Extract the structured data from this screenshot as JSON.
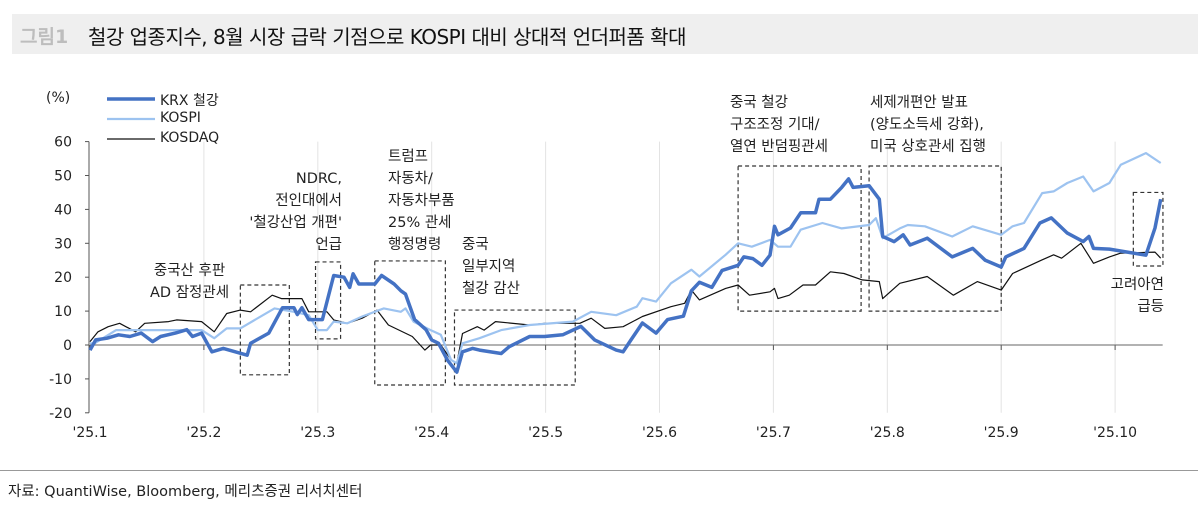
{
  "header": {
    "figure_label": "그림1",
    "title": "철강 업종지수, 8월 시장 급락 기점으로 KOSPI 대비 상대적 언더퍼폼 확대"
  },
  "source": "자료: QuantiWise, Bloomberg, 메리츠증권 리서치센터",
  "chart_data": {
    "type": "line",
    "title": "철강 업종지수, 8월 시장 급락 기점으로 KOSPI 대비 상대적 언더퍼폼 확대",
    "ylabel": "(%)",
    "xlabel": "",
    "ylim": [
      -20,
      60
    ],
    "yticks": [
      60,
      50,
      40,
      30,
      20,
      10,
      0,
      -10,
      -20
    ],
    "xlim": [
      0,
      9.4
    ],
    "xticks": [
      0,
      1,
      2,
      3,
      4,
      5,
      6,
      7,
      8,
      9
    ],
    "xtick_labels": [
      "'25.1",
      "'25.2",
      "'25.3",
      "'25.4",
      "'25.5",
      "'25.6",
      "'25.7",
      "'25.8",
      "'25.9",
      "'25.10"
    ],
    "grid": "vertical",
    "legend_position": "top-left",
    "x_unit": "months since 2025-01",
    "series": [
      {
        "name": "KRX 철강",
        "color": "#4472c4",
        "width": 3.5,
        "points": [
          [
            0,
            -1.5
          ],
          [
            0.05,
            1.5
          ],
          [
            0.15,
            2
          ],
          [
            0.25,
            3
          ],
          [
            0.35,
            2.5
          ],
          [
            0.45,
            3.5
          ],
          [
            0.55,
            1
          ],
          [
            0.62,
            2.5
          ],
          [
            0.75,
            3.5
          ],
          [
            0.85,
            4.5
          ],
          [
            0.9,
            2.5
          ],
          [
            0.98,
            3.5
          ],
          [
            1.07,
            -2
          ],
          [
            1.17,
            -1
          ],
          [
            1.38,
            -3
          ],
          [
            1.41,
            0.5
          ],
          [
            1.57,
            3.5
          ],
          [
            1.69,
            11
          ],
          [
            1.79,
            11
          ],
          [
            1.82,
            9
          ],
          [
            1.86,
            11
          ],
          [
            1.92,
            7.5
          ],
          [
            2.04,
            7.5
          ],
          [
            2.14,
            20.5
          ],
          [
            2.23,
            20
          ],
          [
            2.28,
            17
          ],
          [
            2.31,
            21
          ],
          [
            2.36,
            18
          ],
          [
            2.5,
            18
          ],
          [
            2.56,
            20.5
          ],
          [
            2.67,
            18
          ],
          [
            2.73,
            16
          ],
          [
            2.77,
            15
          ],
          [
            2.85,
            7.5
          ],
          [
            2.95,
            4.5
          ],
          [
            3.0,
            1.5
          ],
          [
            3.06,
            0.5
          ],
          [
            3.14,
            -4.5
          ],
          [
            3.22,
            -8
          ],
          [
            3.27,
            -2
          ],
          [
            3.36,
            -1
          ],
          [
            3.42,
            -1.5
          ],
          [
            3.61,
            -2.5
          ],
          [
            3.68,
            -0.5
          ],
          [
            3.86,
            2.5
          ],
          [
            3.99,
            2.5
          ],
          [
            4.15,
            3
          ],
          [
            4.31,
            5.5
          ],
          [
            4.43,
            1.5
          ],
          [
            4.62,
            -1.5
          ],
          [
            4.68,
            -2
          ],
          [
            4.75,
            1.5
          ],
          [
            4.85,
            6.5
          ],
          [
            4.97,
            3.5
          ],
          [
            5.07,
            7.5
          ],
          [
            5.21,
            8.5
          ],
          [
            5.28,
            16
          ],
          [
            5.35,
            18.5
          ],
          [
            5.46,
            17
          ],
          [
            5.55,
            22
          ],
          [
            5.69,
            23.5
          ],
          [
            5.74,
            26
          ],
          [
            5.82,
            25.5
          ],
          [
            5.9,
            23.5
          ],
          [
            5.97,
            26.5
          ],
          [
            6.01,
            35
          ],
          [
            6.04,
            32.5
          ],
          [
            6.15,
            34.5
          ],
          [
            6.24,
            39
          ],
          [
            6.37,
            39
          ],
          [
            6.4,
            43
          ],
          [
            6.5,
            43
          ],
          [
            6.6,
            46.5
          ],
          [
            6.66,
            49
          ],
          [
            6.7,
            46.5
          ],
          [
            6.84,
            47
          ],
          [
            6.93,
            43
          ],
          [
            6.96,
            32
          ],
          [
            7.06,
            30.5
          ],
          [
            7.14,
            32.5
          ],
          [
            7.2,
            29.5
          ],
          [
            7.35,
            31.5
          ],
          [
            7.57,
            26
          ],
          [
            7.75,
            28.5
          ],
          [
            7.86,
            25
          ],
          [
            8.0,
            23
          ],
          [
            8.04,
            26
          ],
          [
            8.2,
            28.5
          ],
          [
            8.34,
            36
          ],
          [
            8.44,
            37.5
          ],
          [
            8.58,
            33
          ],
          [
            8.72,
            30.5
          ],
          [
            8.77,
            32
          ],
          [
            8.81,
            28.5
          ],
          [
            8.95,
            28.3
          ],
          [
            9.27,
            26.5
          ],
          [
            9.35,
            34.5
          ],
          [
            9.4,
            43
          ]
        ]
      },
      {
        "name": "KOSPI",
        "color": "#9dc3f0",
        "width": 2.2,
        "points": [
          [
            0,
            0.5
          ],
          [
            0.04,
            0.5
          ],
          [
            0.23,
            4.4
          ],
          [
            0.98,
            4.4
          ],
          [
            1.09,
            2
          ],
          [
            1.2,
            4.9
          ],
          [
            1.32,
            4.9
          ],
          [
            1.62,
            10.8
          ],
          [
            1.79,
            9.8
          ],
          [
            1.92,
            8.8
          ],
          [
            2.0,
            4.4
          ],
          [
            2.08,
            4.4
          ],
          [
            2.14,
            6.9
          ],
          [
            2.26,
            6.4
          ],
          [
            2.39,
            8.4
          ],
          [
            2.58,
            10.8
          ],
          [
            2.73,
            9.8
          ],
          [
            2.77,
            10.8
          ],
          [
            2.84,
            6.9
          ],
          [
            2.99,
            4.4
          ],
          [
            3.08,
            3
          ],
          [
            3.17,
            -4.4
          ],
          [
            3.22,
            -5.4
          ],
          [
            3.27,
            0.5
          ],
          [
            3.42,
            2
          ],
          [
            3.61,
            4.4
          ],
          [
            3.86,
            5.9
          ],
          [
            4.24,
            6.9
          ],
          [
            4.4,
            9.8
          ],
          [
            4.62,
            8.8
          ],
          [
            4.8,
            11.3
          ],
          [
            4.85,
            13.8
          ],
          [
            4.97,
            12.8
          ],
          [
            5.1,
            18.2
          ],
          [
            5.28,
            22.2
          ],
          [
            5.35,
            20.2
          ],
          [
            5.58,
            26.6
          ],
          [
            5.69,
            30
          ],
          [
            5.81,
            29
          ],
          [
            5.97,
            31
          ],
          [
            6.04,
            29
          ],
          [
            6.15,
            29
          ],
          [
            6.24,
            34
          ],
          [
            6.43,
            36
          ],
          [
            6.6,
            34.4
          ],
          [
            6.84,
            35.4
          ],
          [
            6.9,
            37.4
          ],
          [
            6.96,
            31.5
          ],
          [
            7.11,
            34.4
          ],
          [
            7.18,
            35.4
          ],
          [
            7.33,
            35
          ],
          [
            7.57,
            32
          ],
          [
            7.75,
            35
          ],
          [
            8.0,
            32.5
          ],
          [
            8.1,
            35
          ],
          [
            8.2,
            36
          ],
          [
            8.36,
            44.8
          ],
          [
            8.46,
            45.3
          ],
          [
            8.58,
            47.8
          ],
          [
            8.72,
            49.7
          ],
          [
            8.81,
            45.3
          ],
          [
            8.95,
            47.8
          ],
          [
            9.05,
            53.2
          ],
          [
            9.27,
            56.6
          ],
          [
            9.4,
            53.7
          ]
        ]
      },
      {
        "name": "KOSDAQ",
        "color": "#111111",
        "width": 1.2,
        "points": [
          [
            0.0,
            1
          ],
          [
            0.07,
            3.9
          ],
          [
            0.16,
            5.4
          ],
          [
            0.26,
            6.4
          ],
          [
            0.4,
            3.9
          ],
          [
            0.48,
            6.4
          ],
          [
            0.69,
            6.9
          ],
          [
            0.76,
            7.4
          ],
          [
            0.98,
            6.9
          ],
          [
            1.09,
            3.9
          ],
          [
            1.2,
            9.3
          ],
          [
            1.32,
            10.3
          ],
          [
            1.41,
            9.8
          ],
          [
            1.6,
            14.7
          ],
          [
            1.68,
            13.7
          ],
          [
            1.86,
            13.7
          ],
          [
            1.92,
            9.8
          ],
          [
            2.08,
            9.8
          ],
          [
            2.14,
            7.4
          ],
          [
            2.26,
            6.4
          ],
          [
            2.39,
            7.9
          ],
          [
            2.52,
            10.3
          ],
          [
            2.62,
            5.9
          ],
          [
            2.83,
            2.5
          ],
          [
            2.94,
            -1.5
          ],
          [
            2.99,
            0
          ],
          [
            3.08,
            0
          ],
          [
            3.17,
            -4.4
          ],
          [
            3.22,
            -5.4
          ],
          [
            3.27,
            3.4
          ],
          [
            3.4,
            5.4
          ],
          [
            3.46,
            4.4
          ],
          [
            3.56,
            6.9
          ],
          [
            3.86,
            5.9
          ],
          [
            3.99,
            6.4
          ],
          [
            4.3,
            6.4
          ],
          [
            4.4,
            7.9
          ],
          [
            4.52,
            4.9
          ],
          [
            4.68,
            5.4
          ],
          [
            4.85,
            8.4
          ],
          [
            5.1,
            11.3
          ],
          [
            5.22,
            12.3
          ],
          [
            5.28,
            16.2
          ],
          [
            5.35,
            13.3
          ],
          [
            5.58,
            16.7
          ],
          [
            5.69,
            17.7
          ],
          [
            5.79,
            14.7
          ],
          [
            5.97,
            15.7
          ],
          [
            6.01,
            16.7
          ],
          [
            6.04,
            13.7
          ],
          [
            6.14,
            14.7
          ],
          [
            6.26,
            17.7
          ],
          [
            6.37,
            17.7
          ],
          [
            6.5,
            21.6
          ],
          [
            6.62,
            21.1
          ],
          [
            6.78,
            19.2
          ],
          [
            6.93,
            18.7
          ],
          [
            6.96,
            13.7
          ],
          [
            7.11,
            18.2
          ],
          [
            7.35,
            20.2
          ],
          [
            7.58,
            14.7
          ],
          [
            7.79,
            18.7
          ],
          [
            8.0,
            16.2
          ],
          [
            8.1,
            21.1
          ],
          [
            8.35,
            25
          ],
          [
            8.46,
            26.6
          ],
          [
            8.53,
            25.6
          ],
          [
            8.7,
            30
          ],
          [
            8.81,
            24.1
          ],
          [
            8.95,
            26
          ],
          [
            9.05,
            27.1
          ],
          [
            9.35,
            27.4
          ],
          [
            9.4,
            25.6
          ]
        ]
      }
    ],
    "annotations": [
      {
        "text": "중국산 후판\nAD 잠정관세",
        "box": {
          "x": [
            1.32,
            1.75
          ],
          "y": [
            -8.8,
            17.7
          ]
        }
      },
      {
        "text": "NDRC,\n전인대에서\n'철강산업 개편'\n언급",
        "box": {
          "x": [
            1.98,
            2.2
          ],
          "y": [
            1.8,
            24.5
          ]
        }
      },
      {
        "text": "트럼프\n자동차/\n자동차부품\n25% 관세\n행정명령",
        "box": {
          "x": [
            2.5,
            3.12
          ],
          "y": [
            -11.8,
            24.8
          ]
        }
      },
      {
        "text": "중국\n일부지역\n철강 감산",
        "box": {
          "x": [
            3.2,
            4.26
          ],
          "y": [
            -11.8,
            10.3
          ]
        }
      },
      {
        "text": "중국 철강\n구조조정 기대/\n열연 반덤핑관세",
        "box": {
          "x": [
            5.69,
            6.77
          ],
          "y": [
            10,
            52.8
          ]
        }
      },
      {
        "text": "세제개편안 발표\n(양도소득세 강화),\n미국 상호관세 집행",
        "box": {
          "x": [
            6.84,
            8.0
          ],
          "y": [
            10,
            52.8
          ]
        }
      },
      {
        "text": "고려아연\n급등",
        "box": {
          "x": [
            9.16,
            9.42
          ],
          "y": [
            23.3,
            45
          ]
        }
      }
    ]
  }
}
